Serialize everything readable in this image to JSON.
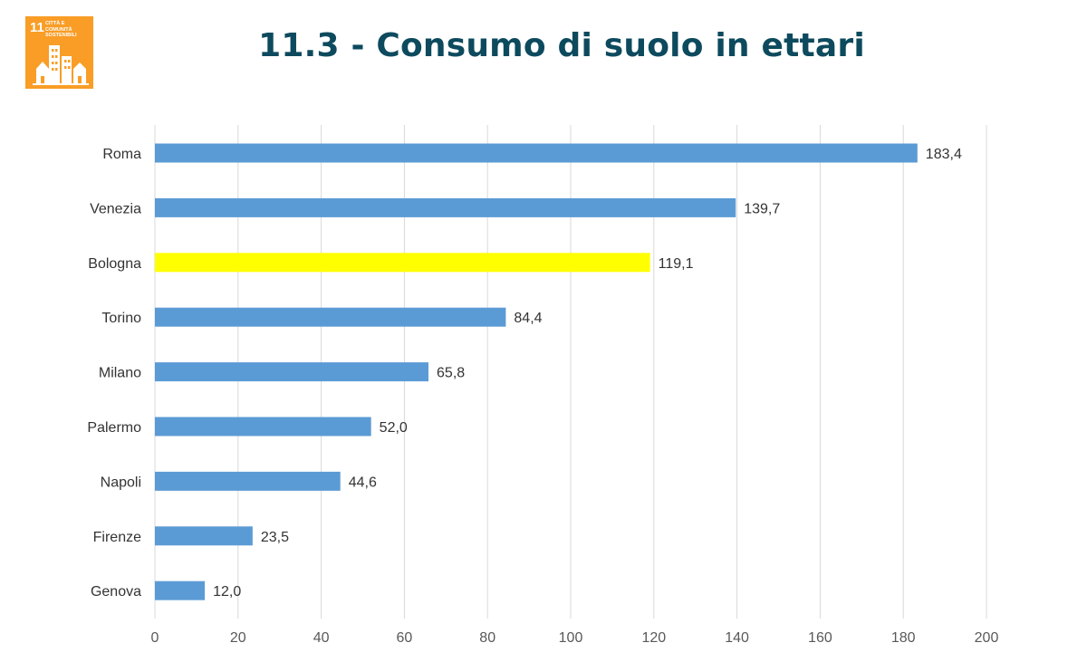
{
  "logo": {
    "number": "11",
    "text": "Città e comunità sostenibili",
    "color": "#f99d26"
  },
  "title": "11.3 - Consumo di suolo in ettari",
  "chart_data": {
    "type": "bar",
    "orientation": "horizontal",
    "title": "11.3 - Consumo di suolo in ettari",
    "xlabel": "",
    "ylabel": "",
    "categories": [
      "Roma",
      "Venezia",
      "Bologna",
      "Torino",
      "Milano",
      "Palermo",
      "Napoli",
      "Firenze",
      "Genova"
    ],
    "values": [
      183.4,
      139.7,
      119.1,
      84.4,
      65.8,
      52.0,
      44.6,
      23.5,
      12.0
    ],
    "value_labels": [
      "183,4",
      "139,7",
      "119,1",
      "84,4",
      "65,8",
      "52,0",
      "44,6",
      "23,5",
      "12,0"
    ],
    "xlim": [
      0,
      200
    ],
    "ticks": [
      0,
      20,
      40,
      60,
      80,
      100,
      120,
      140,
      160,
      180,
      200
    ],
    "grid": "vertical",
    "legend": "none",
    "bar_color": "#5b9bd5",
    "highlight": {
      "category": "Bologna",
      "color": "#ffff00"
    }
  }
}
